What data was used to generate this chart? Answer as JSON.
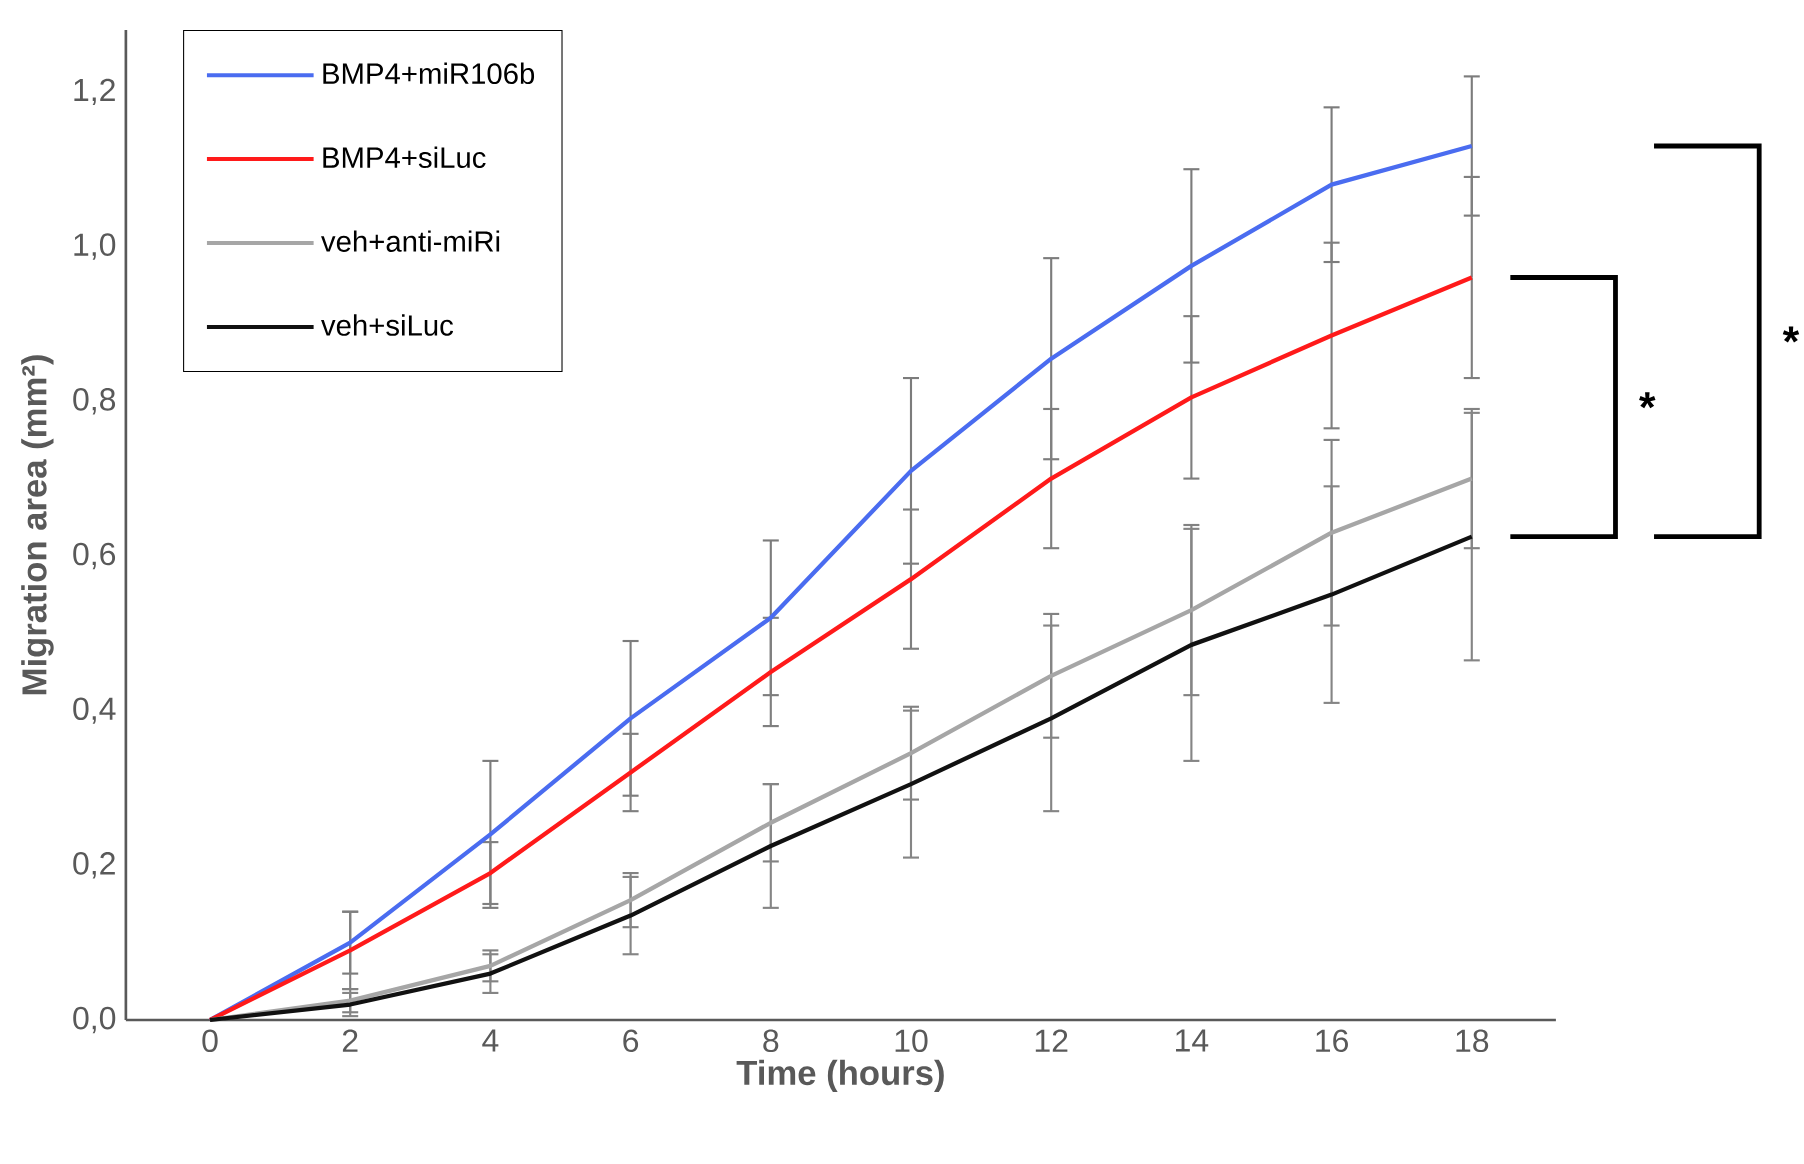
{
  "chart_data": {
    "type": "line",
    "xlabel": "Time (hours)",
    "ylabel": "Migration area (mm²)",
    "x": [
      0,
      2,
      4,
      6,
      8,
      10,
      12,
      14,
      16,
      18
    ],
    "series": [
      {
        "name": "BMP4+miR106b",
        "color": "#4a6cf0",
        "values": [
          0,
          0.1,
          0.24,
          0.39,
          0.52,
          0.71,
          0.855,
          0.975,
          1.08,
          1.13
        ],
        "errors": [
          null,
          0.04,
          0.095,
          0.1,
          0.1,
          0.12,
          0.13,
          0.125,
          0.1,
          0.09
        ]
      },
      {
        "name": "BMP4+siLuc",
        "color": "#ff1a1a",
        "values": [
          0,
          0.09,
          0.19,
          0.32,
          0.45,
          0.57,
          0.7,
          0.805,
          0.885,
          0.96
        ],
        "errors": [
          null,
          0.05,
          0.04,
          0.05,
          0.07,
          0.09,
          0.09,
          0.105,
          0.12,
          0.13
        ]
      },
      {
        "name": "veh+anti-miRi",
        "color": "#a6a6a6",
        "values": [
          0,
          0.025,
          0.07,
          0.155,
          0.255,
          0.345,
          0.445,
          0.53,
          0.63,
          0.7
        ],
        "errors": [
          null,
          0.015,
          0.02,
          0.035,
          0.05,
          0.06,
          0.08,
          0.11,
          0.12,
          0.09
        ]
      },
      {
        "name": "veh+siLuc",
        "color": "#111111",
        "values": [
          0,
          0.02,
          0.06,
          0.135,
          0.225,
          0.305,
          0.39,
          0.485,
          0.55,
          0.625
        ],
        "errors": [
          null,
          0.015,
          0.025,
          0.05,
          0.08,
          0.095,
          0.12,
          0.15,
          0.14,
          0.16
        ]
      }
    ],
    "xlim": [
      -1.2,
      19.2
    ],
    "ylim": [
      0,
      1.28
    ],
    "xticks": [
      0,
      2,
      4,
      6,
      8,
      10,
      12,
      14,
      16,
      18
    ],
    "yticks": [
      {
        "value": 0,
        "label": "0,0"
      },
      {
        "value": 0.2,
        "label": "0,2"
      },
      {
        "value": 0.4,
        "label": "0,4"
      },
      {
        "value": 0.6,
        "label": "0,6"
      },
      {
        "value": 0.8,
        "label": "0,8"
      },
      {
        "value": 1.0,
        "label": "1,0"
      },
      {
        "value": 1.2,
        "label": "1,2"
      }
    ],
    "annotations": [
      "*",
      "*"
    ],
    "legend": "top left",
    "grid": false,
    "marker": "none",
    "line_style": "solid"
  }
}
